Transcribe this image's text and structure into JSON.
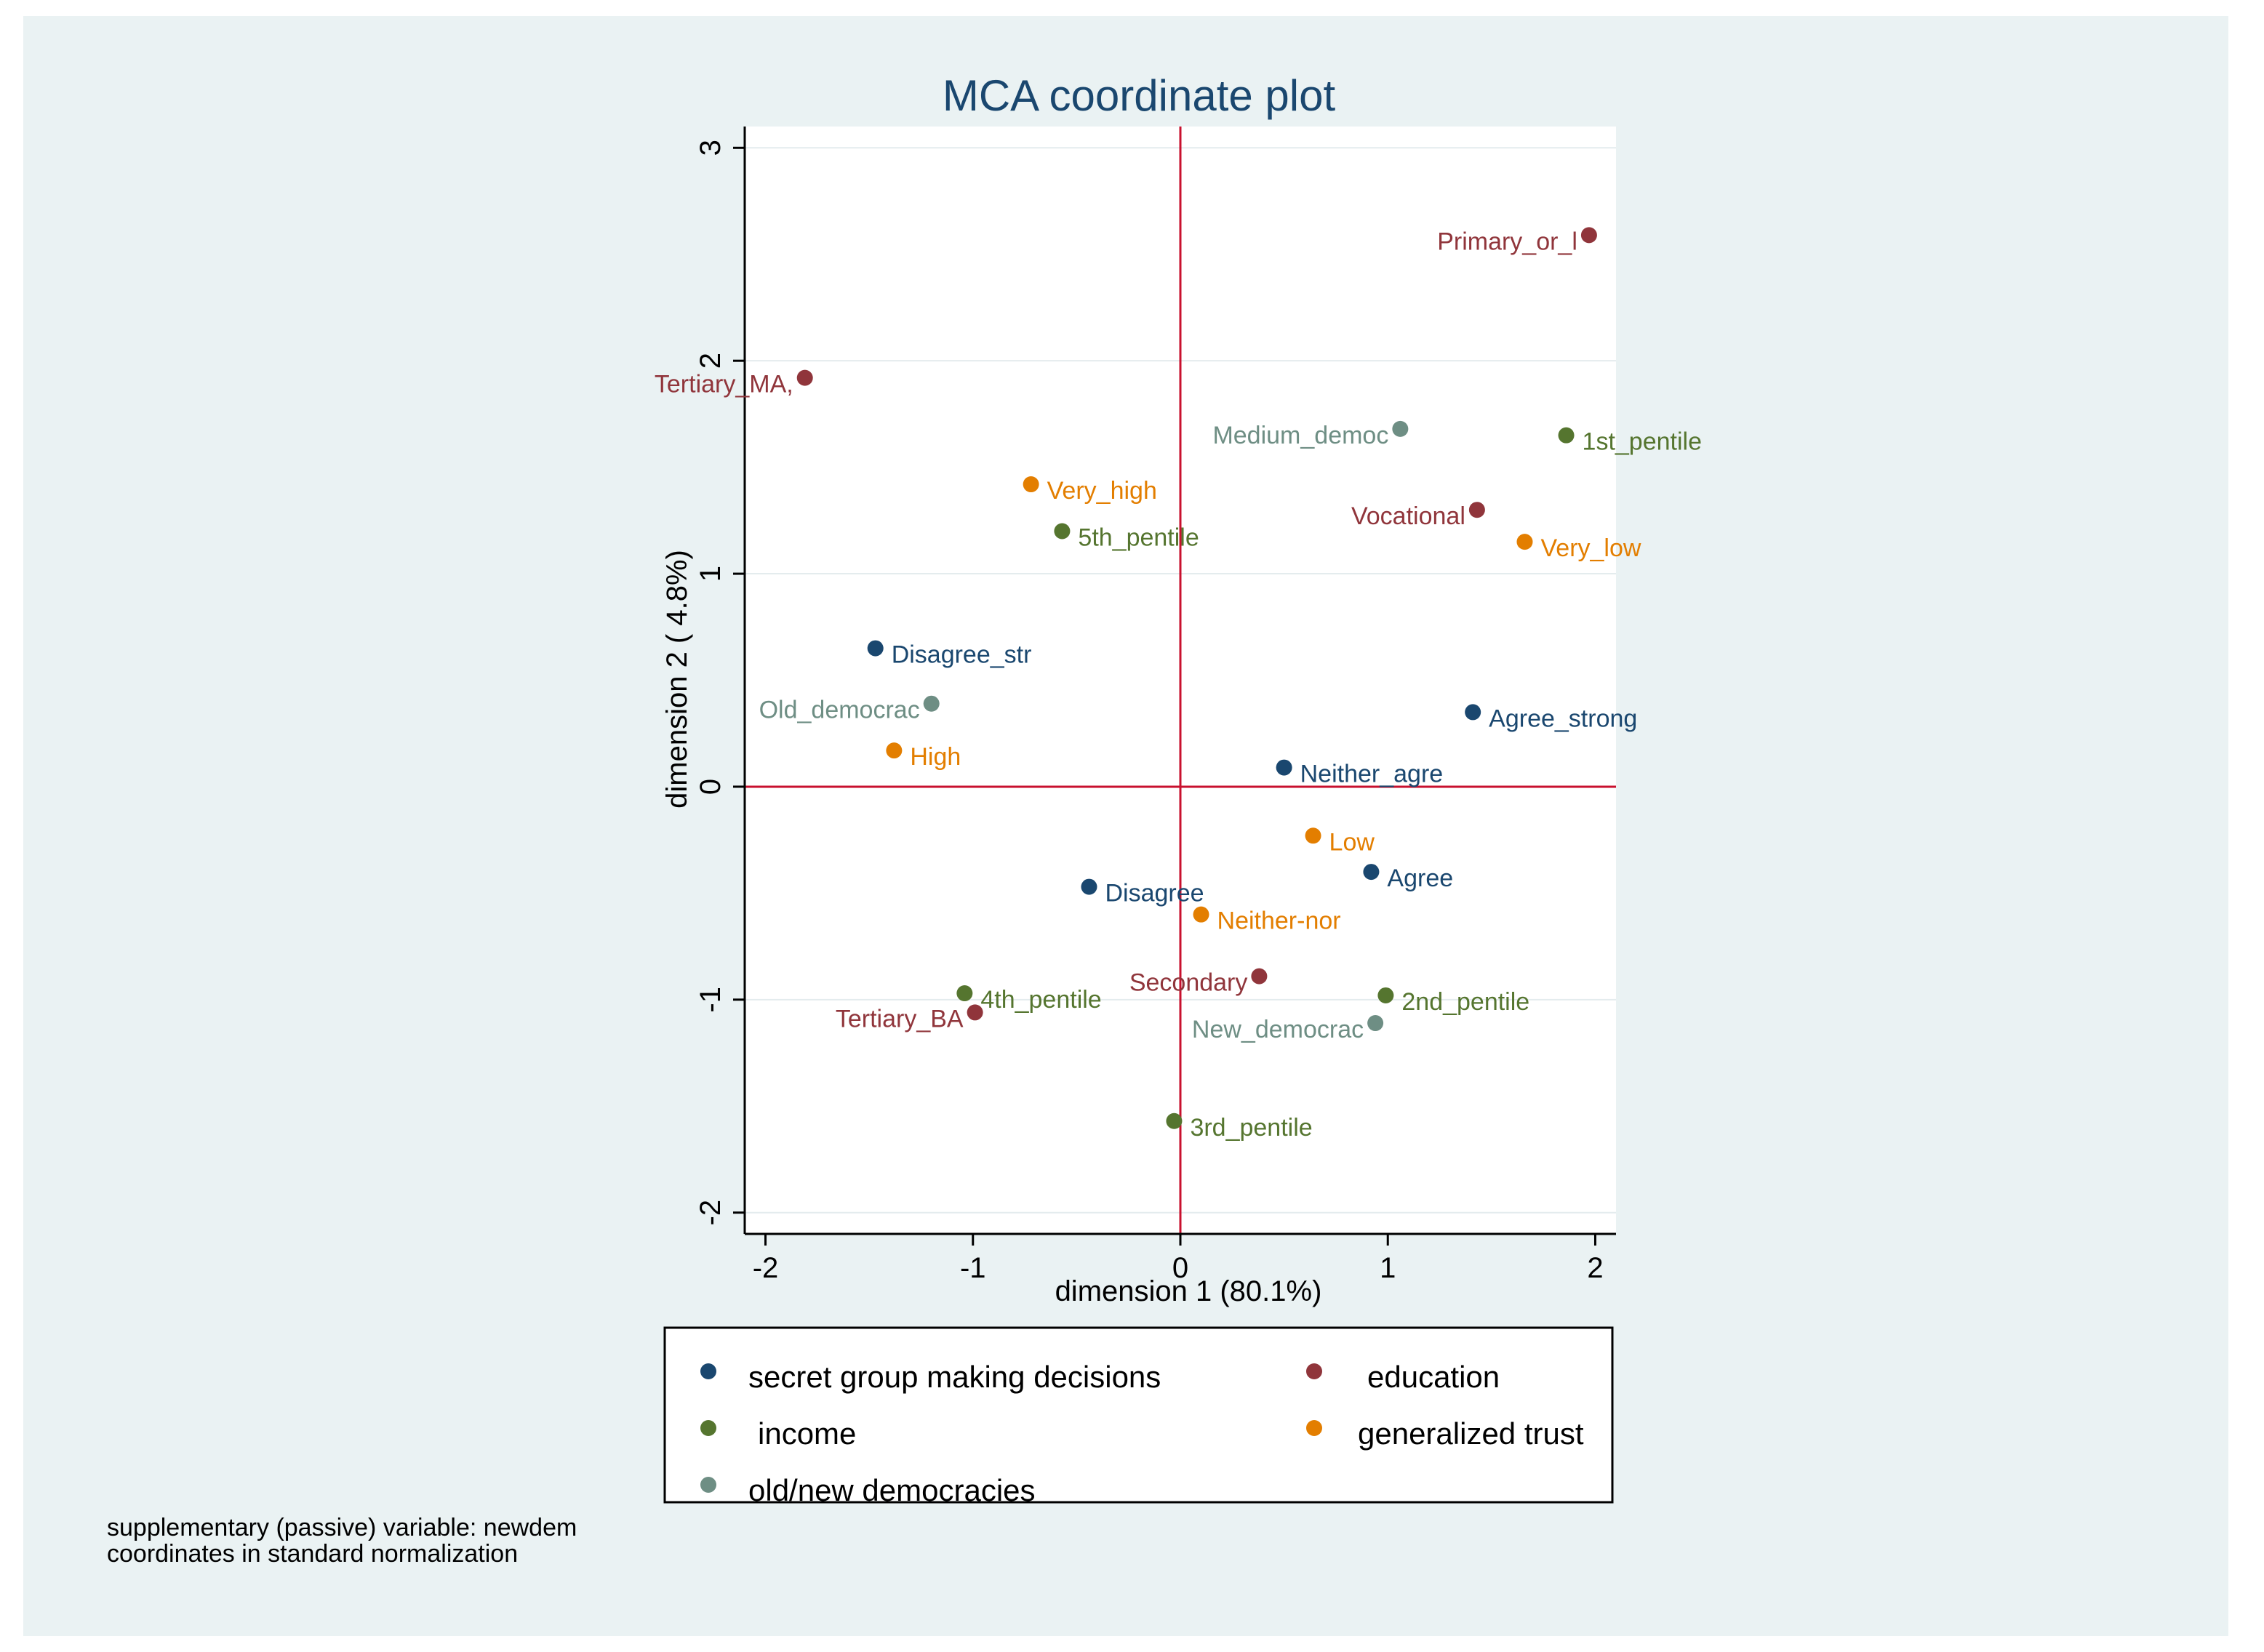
{
  "chart_data": {
    "type": "scatter",
    "title": "MCA coordinate plot",
    "xlabel": "dimension 1 (80.1%)",
    "ylabel": "dimension 2 ( 4.8%)",
    "xlim": [
      -2.1,
      2.1
    ],
    "ylim": [
      -2.1,
      3.1
    ],
    "xticks": [
      -2,
      -1,
      0,
      1,
      2
    ],
    "yticks": [
      -2,
      -1,
      0,
      1,
      2,
      3
    ],
    "xtick_labels": [
      "-2",
      "-1",
      "0",
      "1",
      "2"
    ],
    "ytick_labels": [
      "-2",
      "-1",
      "0",
      "1",
      "2",
      "3"
    ],
    "reference_lines": {
      "x": 0,
      "y": 0,
      "color": "#c8102e"
    },
    "grid": "horizontal",
    "legend_position": "bottom",
    "groups": [
      {
        "key": "secret",
        "name": "secret group making decisions",
        "color": "#1a476f"
      },
      {
        "key": "education",
        "name": "education",
        "color": "#90353b"
      },
      {
        "key": "income",
        "name": "income",
        "color": "#55752f"
      },
      {
        "key": "trust",
        "name": "generalized trust",
        "color": "#e37e00"
      },
      {
        "key": "newdem",
        "name": "old/new democracies",
        "color": "#6e8e84"
      }
    ],
    "points": [
      {
        "label": "Agree_strong",
        "group": "secret",
        "x": 1.41,
        "y": 0.35,
        "side": "right"
      },
      {
        "label": "Agree",
        "group": "secret",
        "x": 0.92,
        "y": -0.4,
        "side": "right"
      },
      {
        "label": "Neither_agre",
        "group": "secret",
        "x": 0.5,
        "y": 0.09,
        "side": "right"
      },
      {
        "label": "Disagree",
        "group": "secret",
        "x": -0.44,
        "y": -0.47,
        "side": "right"
      },
      {
        "label": "Disagree_str",
        "group": "secret",
        "x": -1.47,
        "y": 0.65,
        "side": "right"
      },
      {
        "label": "Primary_or_l",
        "group": "education",
        "x": 1.97,
        "y": 2.59,
        "side": "left"
      },
      {
        "label": "Vocational",
        "group": "education",
        "x": 1.43,
        "y": 1.3,
        "side": "left"
      },
      {
        "label": "Secondary",
        "group": "education",
        "x": 0.38,
        "y": -0.89,
        "side": "left"
      },
      {
        "label": "Tertiary_BA",
        "group": "education",
        "x": -0.99,
        "y": -1.06,
        "side": "left"
      },
      {
        "label": "Tertiary_MA,",
        "group": "education",
        "x": -1.81,
        "y": 1.92,
        "side": "left"
      },
      {
        "label": "1st_pentile",
        "group": "income",
        "x": 1.86,
        "y": 1.65,
        "side": "right"
      },
      {
        "label": "2nd_pentile",
        "group": "income",
        "x": 0.99,
        "y": -0.98,
        "side": "right"
      },
      {
        "label": "3rd_pentile",
        "group": "income",
        "x": -0.03,
        "y": -1.57,
        "side": "right"
      },
      {
        "label": "4th_pentile",
        "group": "income",
        "x": -1.04,
        "y": -0.97,
        "side": "right"
      },
      {
        "label": "5th_pentile",
        "group": "income",
        "x": -0.57,
        "y": 1.2,
        "side": "right"
      },
      {
        "label": "Very_low",
        "group": "trust",
        "x": 1.66,
        "y": 1.15,
        "side": "right"
      },
      {
        "label": "Low",
        "group": "trust",
        "x": 0.64,
        "y": -0.23,
        "side": "right"
      },
      {
        "label": "Neither-nor",
        "group": "trust",
        "x": 0.1,
        "y": -0.6,
        "side": "right"
      },
      {
        "label": "High",
        "group": "trust",
        "x": -1.38,
        "y": 0.17,
        "side": "right"
      },
      {
        "label": "Very_high",
        "group": "trust",
        "x": -0.72,
        "y": 1.42,
        "side": "right"
      },
      {
        "label": "Old_democrac",
        "group": "newdem",
        "x": -1.2,
        "y": 0.39,
        "side": "left"
      },
      {
        "label": "Medium_democ",
        "group": "newdem",
        "x": 1.06,
        "y": 1.68,
        "side": "left"
      },
      {
        "label": "New_democrac",
        "group": "newdem",
        "x": 0.94,
        "y": -1.11,
        "side": "left"
      }
    ]
  },
  "notes": [
    "supplementary (passive) variable: newdem",
    "coordinates in standard normalization"
  ]
}
